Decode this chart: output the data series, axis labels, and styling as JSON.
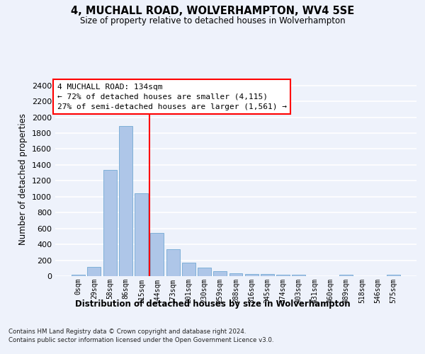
{
  "title": "4, MUCHALL ROAD, WOLVERHAMPTON, WV4 5SE",
  "subtitle": "Size of property relative to detached houses in Wolverhampton",
  "xlabel": "Distribution of detached houses by size in Wolverhampton",
  "ylabel": "Number of detached properties",
  "bar_labels": [
    "0sqm",
    "29sqm",
    "58sqm",
    "86sqm",
    "115sqm",
    "144sqm",
    "173sqm",
    "201sqm",
    "230sqm",
    "259sqm",
    "288sqm",
    "316sqm",
    "345sqm",
    "374sqm",
    "403sqm",
    "431sqm",
    "460sqm",
    "489sqm",
    "518sqm",
    "546sqm",
    "575sqm"
  ],
  "bar_values": [
    15,
    120,
    1340,
    1890,
    1040,
    540,
    335,
    170,
    110,
    60,
    40,
    30,
    25,
    20,
    15,
    0,
    0,
    20,
    0,
    0,
    15
  ],
  "bar_color": "#aec6e8",
  "bar_edgecolor": "#7fb0d8",
  "vline_x": 4.5,
  "vline_color": "red",
  "annotation_title": "4 MUCHALL ROAD: 134sqm",
  "annotation_line1": "← 72% of detached houses are smaller (4,115)",
  "annotation_line2": "27% of semi-detached houses are larger (1,561) →",
  "annotation_box_color": "red",
  "ylim": [
    0,
    2450
  ],
  "yticks": [
    0,
    200,
    400,
    600,
    800,
    1000,
    1200,
    1400,
    1600,
    1800,
    2000,
    2200,
    2400
  ],
  "footer_line1": "Contains HM Land Registry data © Crown copyright and database right 2024.",
  "footer_line2": "Contains public sector information licensed under the Open Government Licence v3.0.",
  "background_color": "#eef2fb",
  "plot_bg_color": "#eef2fb"
}
